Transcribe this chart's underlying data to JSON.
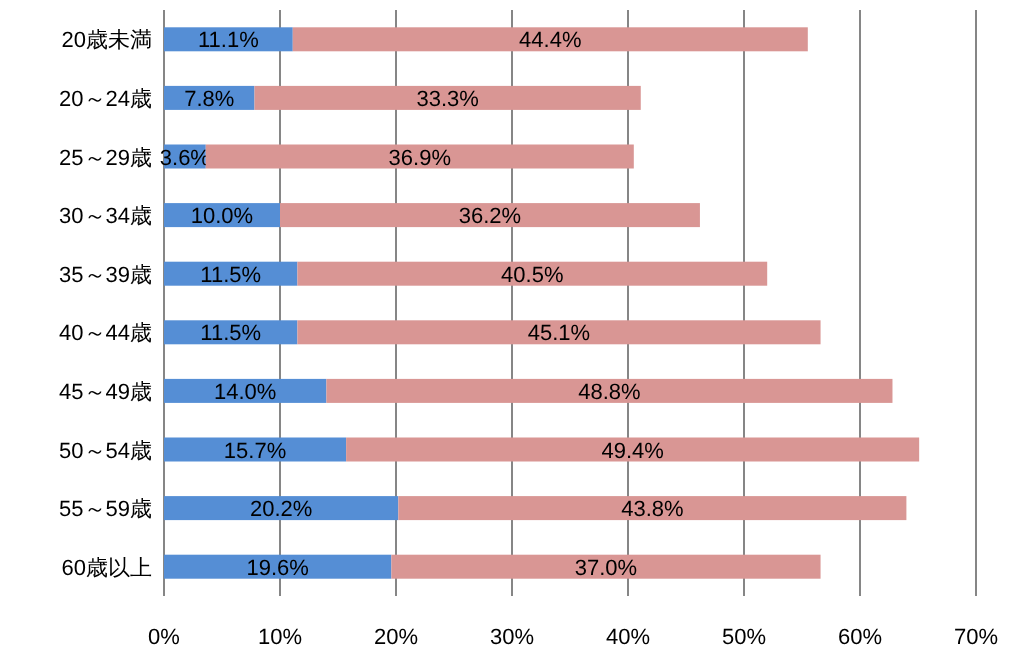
{
  "chart_data": {
    "type": "bar",
    "orientation": "horizontal",
    "stacked": true,
    "grid": "x",
    "categories": [
      "20歳未満",
      "20～24歳",
      "25～29歳",
      "30～34歳",
      "35～39歳",
      "40～44歳",
      "45～49歳",
      "50～54歳",
      "55～59歳",
      "60歳以上"
    ],
    "series": [
      {
        "color": "#558ed5",
        "values": [
          11.1,
          7.8,
          3.6,
          10.0,
          11.5,
          11.5,
          14.0,
          15.7,
          20.2,
          19.6
        ],
        "value_labels": [
          "11.1%",
          "7.8%",
          "3.6%",
          "10.0%",
          "11.5%",
          "11.5%",
          "14.0%",
          "15.7%",
          "20.2%",
          "19.6%"
        ]
      },
      {
        "color": "#d99694",
        "values": [
          44.4,
          33.3,
          36.9,
          36.2,
          40.5,
          45.1,
          48.8,
          49.4,
          43.8,
          37.0
        ],
        "value_labels": [
          "44.4%",
          "33.3%",
          "36.9%",
          "36.2%",
          "40.5%",
          "45.1%",
          "48.8%",
          "49.4%",
          "43.8%",
          "37.0%"
        ]
      }
    ],
    "xlim": [
      0,
      70
    ],
    "xticks": [
      {
        "value": 0,
        "label": "0%"
      },
      {
        "value": 10,
        "label": "10%"
      },
      {
        "value": 20,
        "label": "20%"
      },
      {
        "value": 30,
        "label": "30%"
      },
      {
        "value": 40,
        "label": "40%"
      },
      {
        "value": 50,
        "label": "50%"
      },
      {
        "value": 60,
        "label": "60%"
      },
      {
        "value": 70,
        "label": "70%"
      }
    ]
  }
}
